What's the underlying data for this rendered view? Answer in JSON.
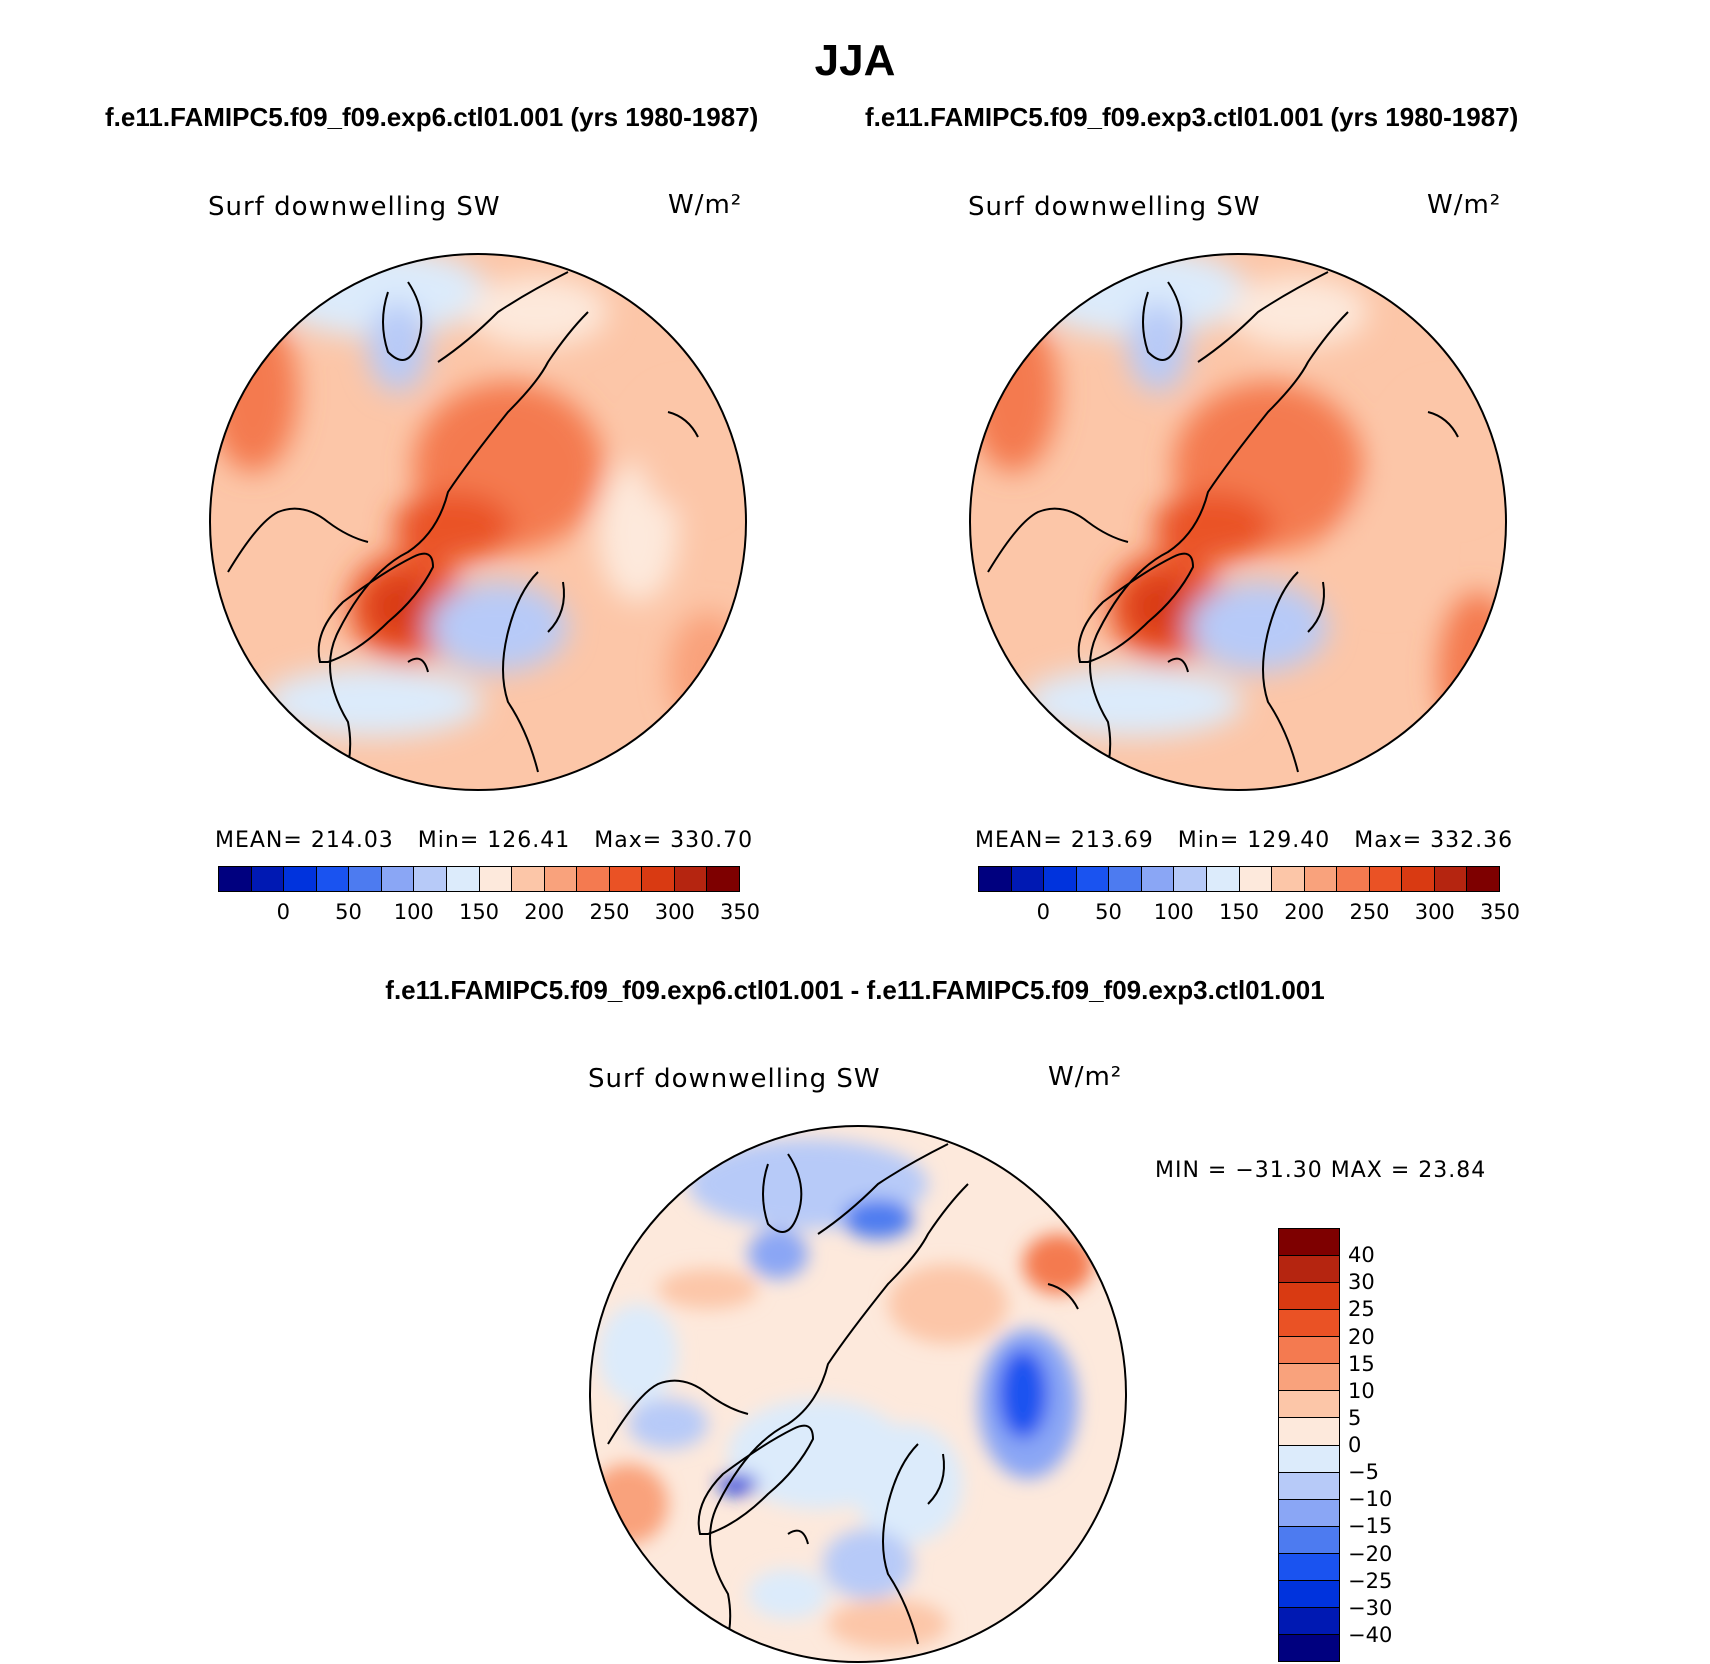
{
  "title": "JJA",
  "panels": [
    {
      "case_title": "f.e11.FAMIPC5.f09_f09.exp6.ctl01.001 (yrs 1980-1987)",
      "variable": "Surf downwelling SW",
      "units": "W/m²",
      "stats": {
        "mean_label": "MEAN=",
        "mean": "214.03",
        "min_label": "Min=",
        "min": "126.41",
        "max_label": "Max=",
        "max": "330.70"
      }
    },
    {
      "case_title": "f.e11.FAMIPC5.f09_f09.exp3.ctl01.001 (yrs 1980-1987)",
      "variable": "Surf downwelling SW",
      "units": "W/m²",
      "stats": {
        "mean_label": "MEAN=",
        "mean": "213.69",
        "min_label": "Min=",
        "min": "129.40",
        "max_label": "Max=",
        "max": "332.36"
      }
    }
  ],
  "diff_panel": {
    "title": "f.e11.FAMIPC5.f09_f09.exp6.ctl01.001 - f.e11.FAMIPC5.f09_f09.exp3.ctl01.001",
    "variable": "Surf downwelling SW",
    "units": "W/m²",
    "minmax_text": "MIN = −31.30 MAX =  23.84"
  },
  "colorbar_main": {
    "colors": [
      "#00007f",
      "#0019b3",
      "#0033dd",
      "#1a53f0",
      "#4d7bf0",
      "#8aa6f5",
      "#b7caf8",
      "#dcebfb",
      "#fde9dc",
      "#fcc6a8",
      "#f9a27c",
      "#f47a50",
      "#ea5225",
      "#d93a12",
      "#b52510",
      "#7e0000"
    ],
    "labels": [
      "0",
      "50",
      "100",
      "150",
      "200",
      "250",
      "300",
      "350"
    ]
  },
  "colorbar_diff": {
    "colors": [
      "#7e0000",
      "#b52510",
      "#d93a12",
      "#ea5225",
      "#f47a50",
      "#f9a27c",
      "#fcc6a8",
      "#fde9dc",
      "#dcebfb",
      "#b7caf8",
      "#8aa6f5",
      "#4d7bf0",
      "#1a53f0",
      "#0033dd",
      "#0019b3",
      "#00007f"
    ],
    "labels": [
      "40",
      "30",
      "25",
      "20",
      "15",
      "10",
      "5",
      "0",
      "−5",
      "−10",
      "−15",
      "−20",
      "−25",
      "−30",
      "−40"
    ]
  }
}
